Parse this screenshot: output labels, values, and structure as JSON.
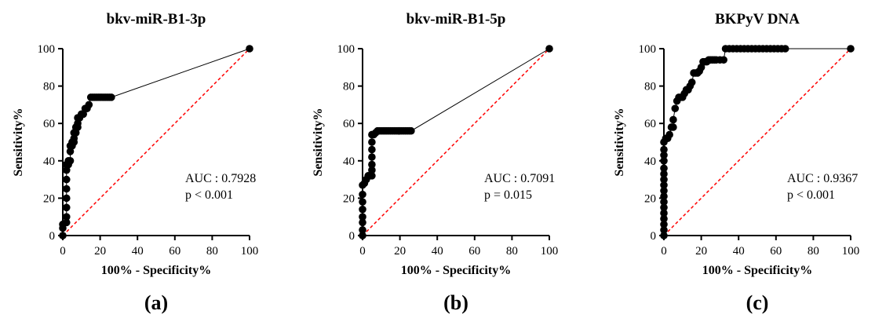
{
  "chart_data": [
    {
      "type": "line",
      "title": "bkv-miR-B1-3p",
      "xlabel": "100% - Specificity%",
      "ylabel": "Sensitivity%",
      "xlim": [
        0,
        100
      ],
      "ylim": [
        0,
        100
      ],
      "xticks": [
        "0",
        "20",
        "40",
        "60",
        "80",
        "100"
      ],
      "yticks": [
        "0",
        "20",
        "40",
        "60",
        "80",
        "100"
      ],
      "annotation": [
        "AUC : 0.7928",
        "p < 0.001"
      ],
      "panel_label": "(a)",
      "x": [
        0,
        0,
        0,
        2,
        2,
        2,
        2,
        2,
        2,
        2,
        2,
        2,
        3,
        3,
        4,
        4,
        4,
        5,
        5,
        6,
        6,
        6,
        7,
        7,
        8,
        8,
        8,
        9,
        10,
        11,
        12,
        13,
        14,
        15,
        16,
        17,
        18,
        19,
        20,
        21,
        22,
        23,
        24,
        25,
        26,
        100
      ],
      "y": [
        0,
        4,
        6,
        7,
        10,
        15,
        20,
        25,
        30,
        35,
        38,
        38,
        38,
        40,
        40,
        45,
        48,
        48,
        50,
        50,
        52,
        55,
        55,
        58,
        58,
        60,
        63,
        63,
        65,
        65,
        68,
        68,
        70,
        74,
        74,
        74,
        74,
        74,
        74,
        74,
        74,
        74,
        74,
        74,
        74,
        100
      ]
    },
    {
      "type": "line",
      "title": "bkv-miR-B1-5p",
      "xlabel": "100% - Specificity%",
      "ylabel": "Sensitivity%",
      "xlim": [
        0,
        100
      ],
      "ylim": [
        0,
        100
      ],
      "xticks": [
        "0",
        "20",
        "40",
        "60",
        "80",
        "100"
      ],
      "yticks": [
        "0",
        "20",
        "40",
        "60",
        "80",
        "100"
      ],
      "annotation": [
        "AUC : 0.7091",
        "p = 0.015"
      ],
      "panel_label": "(b)",
      "x": [
        0,
        0,
        0,
        0,
        0,
        0,
        0,
        0,
        1,
        2,
        3,
        4,
        5,
        5,
        5,
        5,
        5,
        5,
        5,
        6,
        7,
        8,
        9,
        10,
        11,
        12,
        13,
        14,
        15,
        16,
        17,
        18,
        19,
        20,
        21,
        22,
        23,
        24,
        25,
        26,
        100
      ],
      "y": [
        0,
        3,
        7,
        10,
        14,
        18,
        22,
        27,
        28,
        30,
        32,
        32,
        32,
        35,
        38,
        42,
        46,
        50,
        54,
        54,
        55,
        56,
        56,
        56,
        56,
        56,
        56,
        56,
        56,
        56,
        56,
        56,
        56,
        56,
        56,
        56,
        56,
        56,
        56,
        56,
        100
      ]
    },
    {
      "type": "line",
      "title": "BKPyV DNA",
      "xlabel": "100% - Specificity%",
      "ylabel": "Sensitivity%",
      "xlim": [
        0,
        100
      ],
      "ylim": [
        0,
        100
      ],
      "xticks": [
        "0",
        "20",
        "40",
        "60",
        "80",
        "100"
      ],
      "yticks": [
        "0",
        "20",
        "40",
        "60",
        "80",
        "100"
      ],
      "annotation": [
        "AUC : 0.9367",
        "p < 0.001"
      ],
      "panel_label": "(c)",
      "x": [
        0,
        0,
        0,
        0,
        0,
        0,
        0,
        0,
        0,
        0,
        0,
        0,
        0,
        0,
        0,
        0,
        0,
        1,
        2,
        3,
        4,
        5,
        5,
        6,
        7,
        8,
        9,
        10,
        11,
        12,
        13,
        14,
        15,
        16,
        17,
        18,
        19,
        20,
        21,
        22,
        23,
        24,
        25,
        26,
        27,
        28,
        30,
        32,
        33,
        35,
        37,
        39,
        41,
        43,
        45,
        47,
        49,
        51,
        53,
        55,
        57,
        59,
        61,
        63,
        65,
        100
      ],
      "y": [
        0,
        3,
        6,
        9,
        12,
        15,
        18,
        21,
        24,
        27,
        30,
        33,
        36,
        40,
        43,
        46,
        50,
        52,
        52,
        54,
        58,
        58,
        62,
        68,
        72,
        74,
        74,
        74,
        76,
        78,
        78,
        80,
        82,
        87,
        87,
        87,
        88,
        90,
        93,
        93,
        93,
        94,
        94,
        94,
        94,
        94,
        94,
        94,
        100,
        100,
        100,
        100,
        100,
        100,
        100,
        100,
        100,
        100,
        100,
        100,
        100,
        100,
        100,
        100,
        100,
        100
      ]
    }
  ]
}
